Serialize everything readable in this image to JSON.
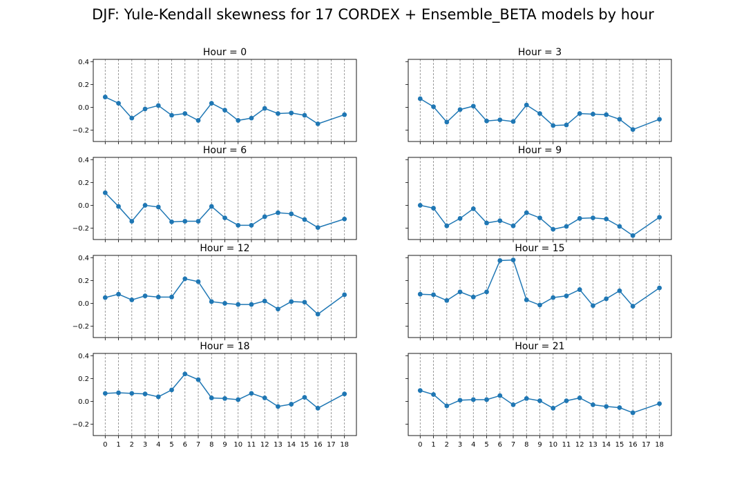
{
  "figure": {
    "title": "DJF: Yule-Kendall skewness for 17 CORDEX + Ensemble_BETA models by hour"
  },
  "chart_data": {
    "type": "line",
    "title": "DJF: Yule-Kendall skewness for 17 CORDEX + Ensemble_BETA models by hour",
    "x": [
      0,
      1,
      2,
      3,
      4,
      5,
      6,
      7,
      8,
      9,
      10,
      11,
      12,
      13,
      14,
      15,
      16,
      18
    ],
    "xticks": [
      "0",
      "1",
      "2",
      "3",
      "4",
      "5",
      "6",
      "7",
      "8",
      "9",
      "10",
      "11",
      "12",
      "13",
      "14",
      "15",
      "16",
      "17",
      "18"
    ],
    "xlim": [
      -0.9,
      18.9
    ],
    "ylim": [
      -0.3,
      0.42
    ],
    "yticks": [
      -0.2,
      0.0,
      0.2,
      0.4
    ],
    "ytick_labels": [
      "−0.2",
      "0.0",
      "0.2",
      "0.4"
    ],
    "sharey": true,
    "vertical_gridlines": true,
    "line_color": "#1f77b4",
    "grid_color": "#808080",
    "panels": [
      {
        "title": "Hour = 0",
        "values": [
          0.09,
          0.035,
          -0.095,
          -0.015,
          0.015,
          -0.07,
          -0.055,
          -0.115,
          0.035,
          -0.025,
          -0.115,
          -0.095,
          -0.01,
          -0.055,
          -0.05,
          -0.07,
          -0.145,
          -0.065
        ]
      },
      {
        "title": "Hour = 3",
        "values": [
          0.075,
          0.005,
          -0.13,
          -0.02,
          0.01,
          -0.12,
          -0.11,
          -0.125,
          0.02,
          -0.055,
          -0.16,
          -0.155,
          -0.055,
          -0.06,
          -0.065,
          -0.105,
          -0.195,
          -0.105
        ]
      },
      {
        "title": "Hour = 6",
        "values": [
          0.11,
          -0.01,
          -0.14,
          0.0,
          -0.015,
          -0.145,
          -0.14,
          -0.14,
          -0.01,
          -0.11,
          -0.175,
          -0.175,
          -0.1,
          -0.065,
          -0.075,
          -0.125,
          -0.195,
          -0.12
        ]
      },
      {
        "title": "Hour = 9",
        "values": [
          0.0,
          -0.025,
          -0.18,
          -0.115,
          -0.03,
          -0.155,
          -0.135,
          -0.18,
          -0.065,
          -0.11,
          -0.21,
          -0.185,
          -0.115,
          -0.11,
          -0.12,
          -0.185,
          -0.265,
          -0.105
        ]
      },
      {
        "title": "Hour = 12",
        "values": [
          0.05,
          0.08,
          0.03,
          0.065,
          0.055,
          0.055,
          0.215,
          0.19,
          0.015,
          0.0,
          -0.01,
          -0.01,
          0.02,
          -0.05,
          0.015,
          0.01,
          -0.095,
          0.075
        ]
      },
      {
        "title": "Hour = 15",
        "values": [
          0.08,
          0.075,
          0.025,
          0.1,
          0.055,
          0.1,
          0.375,
          0.38,
          0.03,
          -0.015,
          0.05,
          0.065,
          0.12,
          -0.02,
          0.04,
          0.11,
          -0.025,
          0.135
        ]
      },
      {
        "title": "Hour = 18",
        "values": [
          0.07,
          0.075,
          0.07,
          0.065,
          0.04,
          0.1,
          0.24,
          0.19,
          0.03,
          0.025,
          0.015,
          0.07,
          0.03,
          -0.045,
          -0.025,
          0.035,
          -0.06,
          0.065
        ]
      },
      {
        "title": "Hour = 21",
        "values": [
          0.095,
          0.06,
          -0.04,
          0.01,
          0.015,
          0.015,
          0.05,
          -0.03,
          0.025,
          0.005,
          -0.06,
          0.005,
          0.03,
          -0.03,
          -0.045,
          -0.055,
          -0.1,
          -0.02
        ]
      }
    ]
  }
}
